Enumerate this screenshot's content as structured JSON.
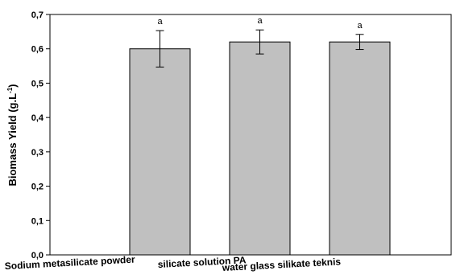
{
  "chart_data": {
    "type": "bar",
    "ylabel": "Biomass Yield (g.L",
    "ylabel_superscript": "-1",
    "ylabel_suffix": ")",
    "ylim": [
      0,
      0.7
    ],
    "yticks": [
      "0,0",
      "0,1",
      "0,2",
      "0,3",
      "0,4",
      "0,5",
      "0,6",
      "0,7"
    ],
    "grid": false,
    "categories": [
      "Sodium metasilicate powder",
      "silicate solution PA",
      "water glass silikate teknis"
    ],
    "values": [
      0.6,
      0.62,
      0.62
    ],
    "error": [
      0.053,
      0.035,
      0.022
    ],
    "annotations": [
      "a",
      "a",
      "a"
    ],
    "bar_color": "#c0c0c0"
  }
}
